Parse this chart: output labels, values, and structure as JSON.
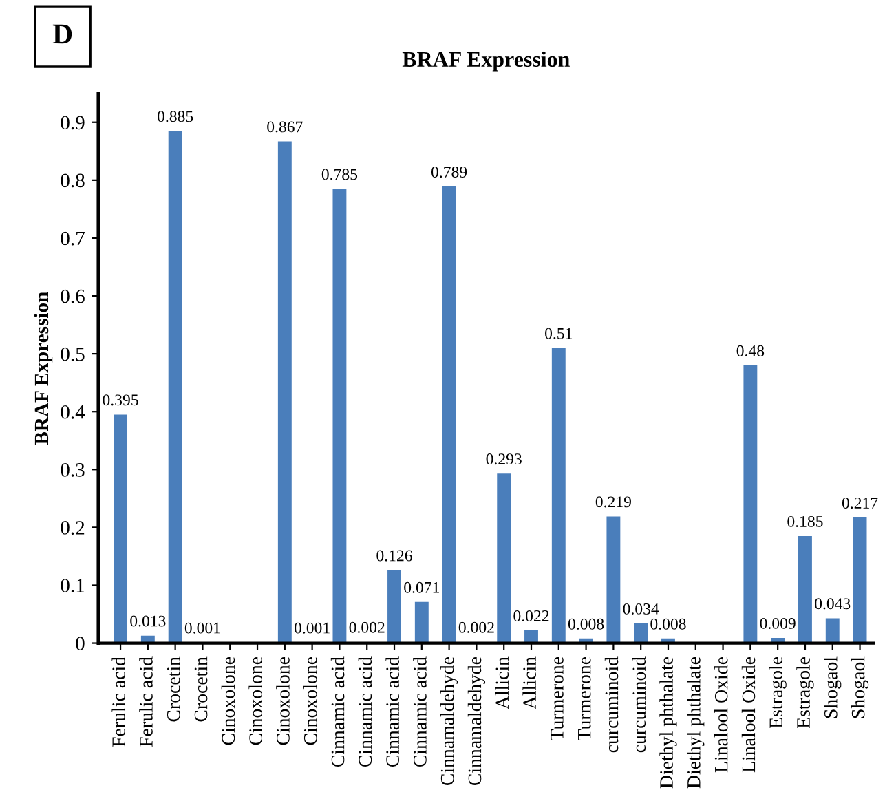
{
  "chart_data": {
    "type": "bar",
    "title": "BRAF Expression",
    "ylabel": "BRAF Expression",
    "annotations": [
      "D"
    ],
    "categories": [
      "Ferulic acid",
      "Ferulic acid",
      "Crocetin",
      "Crocetin",
      "Cinoxolone",
      "Cinoxolone",
      "Cinoxolone",
      "Cinoxolone",
      "Cinnamic acid",
      "Cinnamic acid",
      "Cinnamic acid",
      "Cinnamic acid",
      "Cinnamaldehyde",
      "Cinnamaldehyde",
      "Allicin",
      "Allicin",
      "Turmerone",
      "Turmerone",
      "curcuminoid",
      "curcuminoid",
      "Diethyl phthalate",
      "Diethyl phthalate",
      "Linalool Oxide",
      "Linalool Oxide",
      "Estragole",
      "Estragole",
      "Shogaol",
      "Shogaol"
    ],
    "values": [
      0.395,
      0.013,
      0.885,
      0.001,
      null,
      null,
      0.867,
      0.001,
      0.785,
      0.002,
      0.126,
      0.071,
      0.789,
      0.002,
      0.293,
      0.022,
      0.51,
      0.008,
      0.219,
      0.034,
      0.008,
      null,
      null,
      0.48,
      0.009,
      0.185,
      0.043,
      0.217
    ],
    "color": "#4a7ebb",
    "ylim": [
      0,
      0.95
    ],
    "yticks": [
      {
        "value": 0,
        "label": "0"
      },
      0.1,
      0.2,
      0.3,
      0.4,
      0.5,
      0.6,
      0.7,
      0.8,
      0.9
    ],
    "data_labels": true,
    "grid": false,
    "legend": false
  }
}
